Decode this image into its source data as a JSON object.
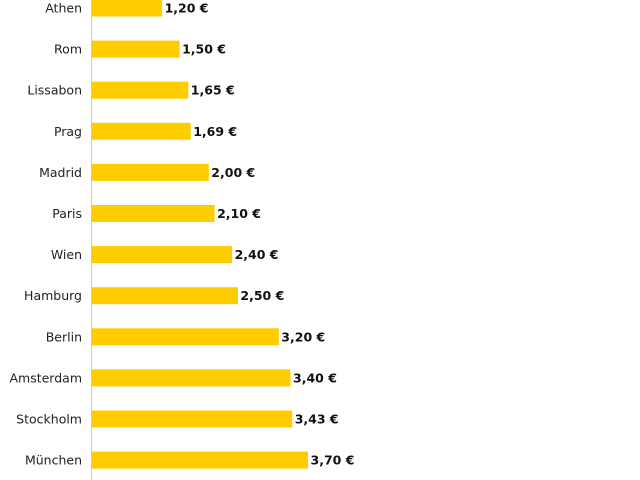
{
  "chart_data": {
    "type": "bar",
    "orientation": "horizontal",
    "categories": [
      "Athen",
      "Rom",
      "Lissabon",
      "Prag",
      "Madrid",
      "Paris",
      "Wien",
      "Hamburg",
      "Berlin",
      "Amsterdam",
      "Stockholm",
      "München"
    ],
    "values": [
      1.2,
      1.5,
      1.65,
      1.69,
      2.0,
      2.1,
      2.4,
      2.5,
      3.2,
      3.4,
      3.43,
      3.7
    ],
    "value_labels": [
      "1,20 €",
      "1,50 €",
      "1,65 €",
      "1,69 €",
      "2,00 €",
      "2,10 €",
      "2,40 €",
      "2,50 €",
      "3,20 €",
      "3,40 €",
      "3,43 €",
      "3,70 €"
    ],
    "title": "",
    "xlabel": "",
    "ylabel": "",
    "xlim": [
      0,
      3.7
    ],
    "grid": false,
    "colors": {
      "bar": "#FFCC00",
      "axis": "#cccccc",
      "text": "#222222"
    }
  }
}
